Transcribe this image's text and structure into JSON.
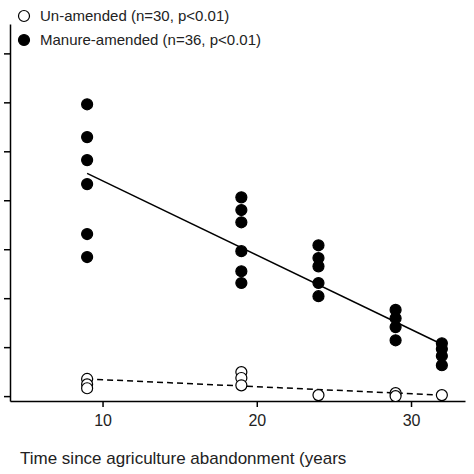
{
  "chart_data": {
    "type": "scatter",
    "x_label": "Time since agriculture abandonment (years",
    "xlim": [
      4,
      33.5
    ],
    "xticks": [
      10,
      20,
      30
    ],
    "ylim": [
      -0.1,
      7.6
    ],
    "yticks": [
      0,
      1,
      2,
      3,
      4,
      5,
      6,
      7
    ],
    "tick_labels": "x",
    "grid": false,
    "legend": "upper left",
    "series": [
      {
        "name": "Un-amended (n=30, p<0.01)",
        "color": "#000000",
        "marker": "circle-open",
        "line_style": "dashed",
        "x": [
          9,
          9,
          9,
          19,
          19,
          19,
          24,
          29,
          29,
          32
        ],
        "values": [
          0.35,
          0.24,
          0.16,
          0.49,
          0.37,
          0.22,
          0.02,
          0.06,
          0,
          0.02
        ],
        "fit_x": [
          9,
          32
        ],
        "fit_values": [
          0.35,
          0.02
        ]
      },
      {
        "name": "Manure-amended (n=36, p<0.01)",
        "color": "#000000",
        "marker": "circle-filled",
        "line_style": "solid",
        "x": [
          9,
          9,
          9,
          9,
          9,
          9,
          19,
          19,
          19,
          19,
          19,
          19,
          24,
          24,
          24,
          24,
          24,
          29,
          29,
          29,
          29,
          32,
          32,
          32,
          32
        ],
        "values": [
          5.96,
          5.29,
          4.82,
          4.33,
          3.31,
          2.84,
          4.06,
          3.8,
          3.55,
          2.96,
          2.55,
          2.31,
          3.08,
          2.82,
          2.65,
          2.31,
          2.04,
          1.76,
          1.59,
          1.41,
          1.14,
          1.08,
          0.96,
          0.82,
          0.63
        ],
        "fit_x": [
          9,
          32
        ],
        "fit_values": [
          4.55,
          1.06
        ]
      }
    ]
  }
}
